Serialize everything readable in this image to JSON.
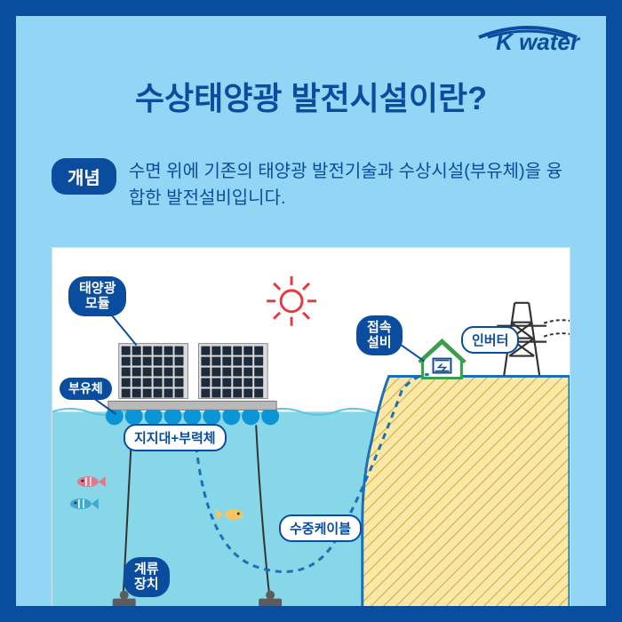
{
  "brand": {
    "name": "K water"
  },
  "title": "수상태양광 발전시설이란?",
  "concept": {
    "pill": "개념",
    "text": "수면 위에 기존의 태양광 발전기술과 수상시설(부유체)을 융합한 발전설비입니다."
  },
  "diagram": {
    "type": "infographic",
    "background_color": "#ffffff",
    "water_color": "#87d7e8",
    "land_fill": "#fbe8a6",
    "land_hatch": "#c8a93e",
    "land_stroke": "#1a6fb5",
    "cable_color": "#1a6fb5",
    "float_color": "#0a96d6",
    "panel_frame": "#dcdcdc",
    "panel_cell": "#1d2b3a",
    "sun_color": "#e43b3b",
    "tower_color": "#333333",
    "anchor_color": "#5c5c5c",
    "fish_colors": [
      "#e07a8c",
      "#f5c560",
      "#3faacf"
    ],
    "labels": {
      "solar_module": "태양광\n모듈",
      "floating_body": "부유체",
      "support": "지지대+부력체",
      "mooring": "계류\n장치",
      "underwater_cable": "수중케이블",
      "junction": "접속\n설비",
      "inverter": "인버터"
    }
  },
  "colors": {
    "outer": "#0a4d9e",
    "inner_bg": "#93d5f5",
    "text": "#0a4d9e"
  }
}
